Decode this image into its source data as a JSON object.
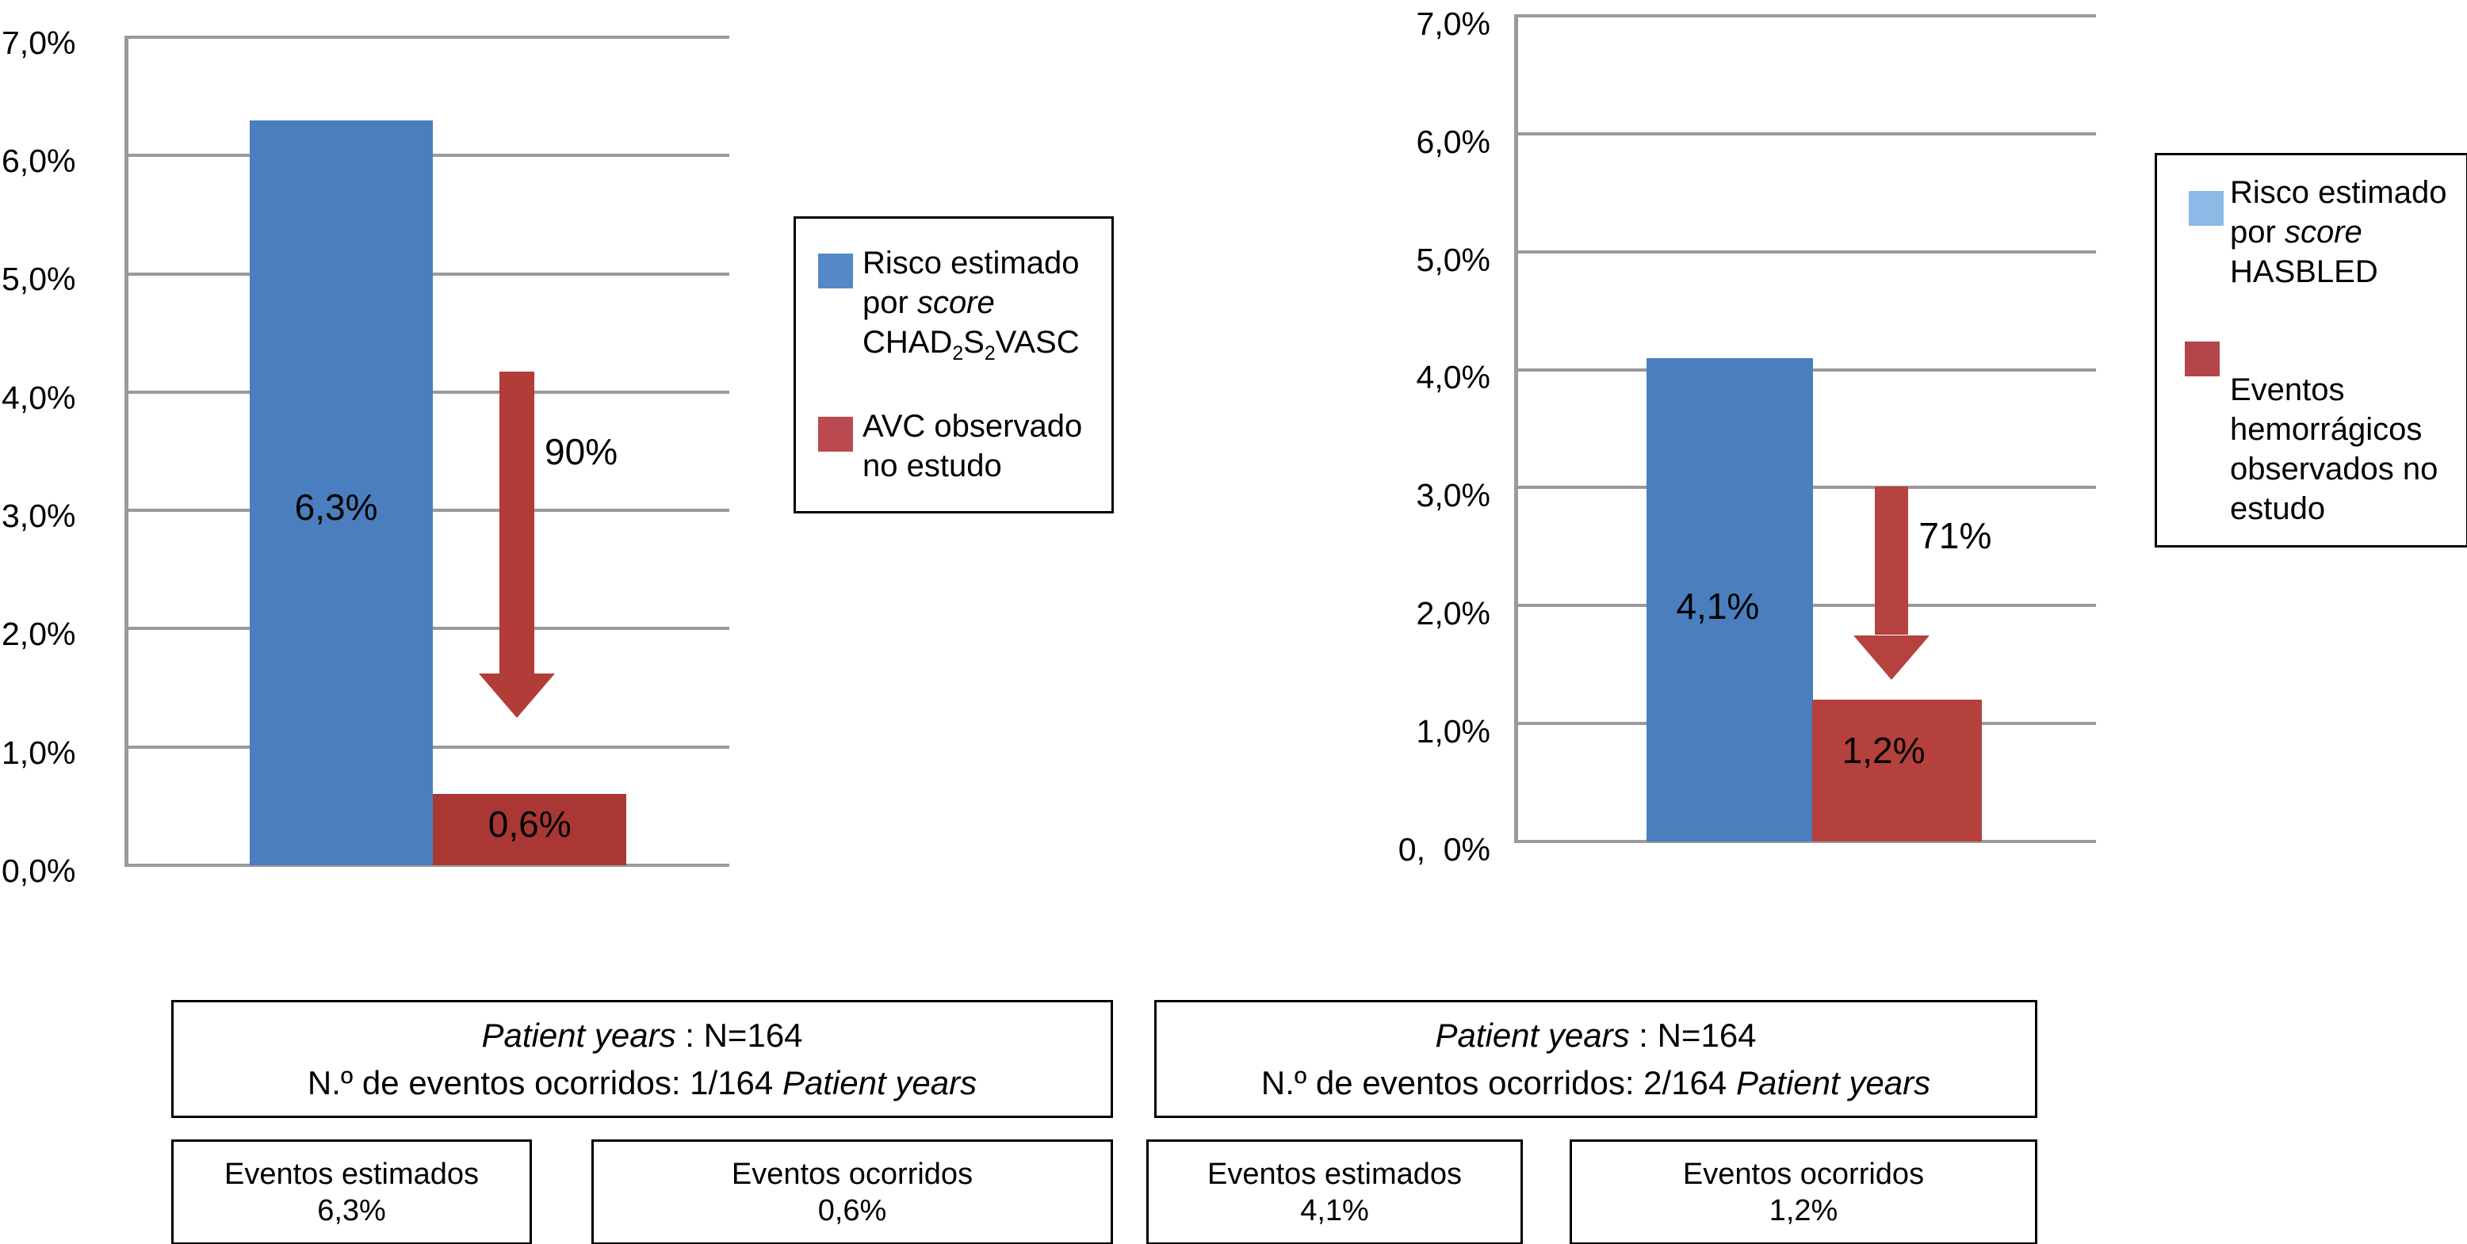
{
  "colors": {
    "grid": "#9A9A9A",
    "bar_blue": "#4A7EBE",
    "bar_red_left": "#A93734",
    "bar_red_right": "#B4413D",
    "legend_blue_dark": "#5588C7",
    "legend_blue_light": "#8DB9E7",
    "legend_red_left": "#BB4A50",
    "legend_red_right": "#B4454B",
    "arrow_red_left": "#B23C38",
    "arrow_red_right": "#B5423E"
  },
  "chart_data": [
    {
      "type": "bar",
      "title": "",
      "xlabel": "",
      "ylabel": "",
      "ylim": [
        0,
        7
      ],
      "grid": true,
      "legend_position": "right",
      "ytick_labels": [
        "0,0%",
        "1,0%",
        "2,0%",
        "3,0%",
        "4,0%",
        "5,0%",
        "6,0%",
        "7,0%"
      ],
      "series": [
        {
          "name": "Risco estimado por score CHAD2S2VASC",
          "value": 6.3,
          "label": "6,3%",
          "color": "#4A7EBE"
        },
        {
          "name": "AVC observado no estudo",
          "value": 0.6,
          "label": "0,6%",
          "color": "#A93734"
        }
      ],
      "annotation": {
        "reduction_label": "90%",
        "arrow_color": "#B23C38"
      },
      "legend": {
        "item1": {
          "swatch_color": "#5588C7",
          "line1": "Risco estimado",
          "line2_pre": "por ",
          "line2_italic": "score",
          "line3_parts": [
            "CHAD",
            "2",
            "S",
            "2",
            "VASC"
          ]
        },
        "item2": {
          "swatch_color": "#BB4A50",
          "lines": [
            "AVC observado",
            "no estudo"
          ]
        }
      },
      "info": {
        "py_italic": "Patient years",
        "py_rest": " : N=164",
        "events_pre": "N.º de eventos ocorridos: 1/164 ",
        "events_italic": "Patient years",
        "estimated_label": "Eventos estimados",
        "estimated_value": "6,3%",
        "occurred_label": "Eventos ocorridos",
        "occurred_value": "0,6%"
      }
    },
    {
      "type": "bar",
      "title": "",
      "xlabel": "",
      "ylabel": "",
      "ylim": [
        0,
        7
      ],
      "grid": true,
      "legend_position": "right",
      "ytick_labels": [
        "0,  0%",
        "1,0%",
        "2,0%",
        "3,0%",
        "4,0%",
        "5,0%",
        "6,0%",
        "7,0%"
      ],
      "series": [
        {
          "name": "Risco estimado por score HASBLED",
          "value": 4.1,
          "label": "4,1%",
          "color": "#4A7EBE"
        },
        {
          "name": "Eventos hemorrágicos observados no estudo",
          "value": 1.2,
          "label": "1,2%",
          "color": "#B4413D"
        }
      ],
      "annotation": {
        "reduction_label": "71%",
        "arrow_color": "#B5423E"
      },
      "legend": {
        "item1": {
          "swatch_color": "#8DB9E7",
          "line1": "Risco estimado",
          "line2_pre": "por ",
          "line2_italic": "score",
          "line3": "HASBLED"
        },
        "item2": {
          "swatch_color": "#B4454B",
          "lines": [
            "Eventos",
            "hemorrágicos",
            "observados no",
            "estudo"
          ]
        }
      },
      "info": {
        "py_italic": "Patient years",
        "py_rest": " : N=164",
        "events_pre": "N.º de eventos ocorridos: 2/164 ",
        "events_italic": "Patient years",
        "estimated_label": "Eventos estimados",
        "estimated_value": "4,1%",
        "occurred_label": "Eventos ocorridos",
        "occurred_value": "1,2%"
      }
    }
  ]
}
